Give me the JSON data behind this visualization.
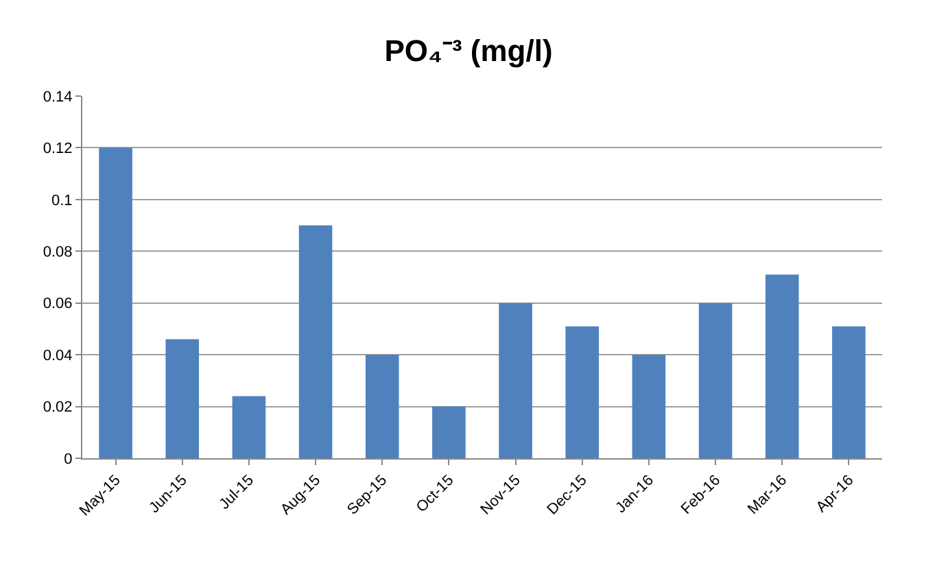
{
  "chart_data": {
    "type": "bar",
    "title": "PO₄⁻³ (mg/l)",
    "categories": [
      "May-15",
      "Jun-15",
      "Jul-15",
      "Aug-15",
      "Sep-15",
      "Oct-15",
      "Nov-15",
      "Dec-15",
      "Jan-16",
      "Feb-16",
      "Mar-16",
      "Apr-16"
    ],
    "values": [
      0.12,
      0.046,
      0.024,
      0.09,
      0.04,
      0.02,
      0.06,
      0.051,
      0.04,
      0.06,
      0.071,
      0.051
    ],
    "color": "#4f81bd",
    "ylim": [
      0,
      0.14
    ],
    "yticks": [
      0,
      0.02,
      0.04,
      0.06,
      0.08,
      0.1,
      0.12,
      0.14
    ],
    "grid": "y",
    "legend": false
  }
}
